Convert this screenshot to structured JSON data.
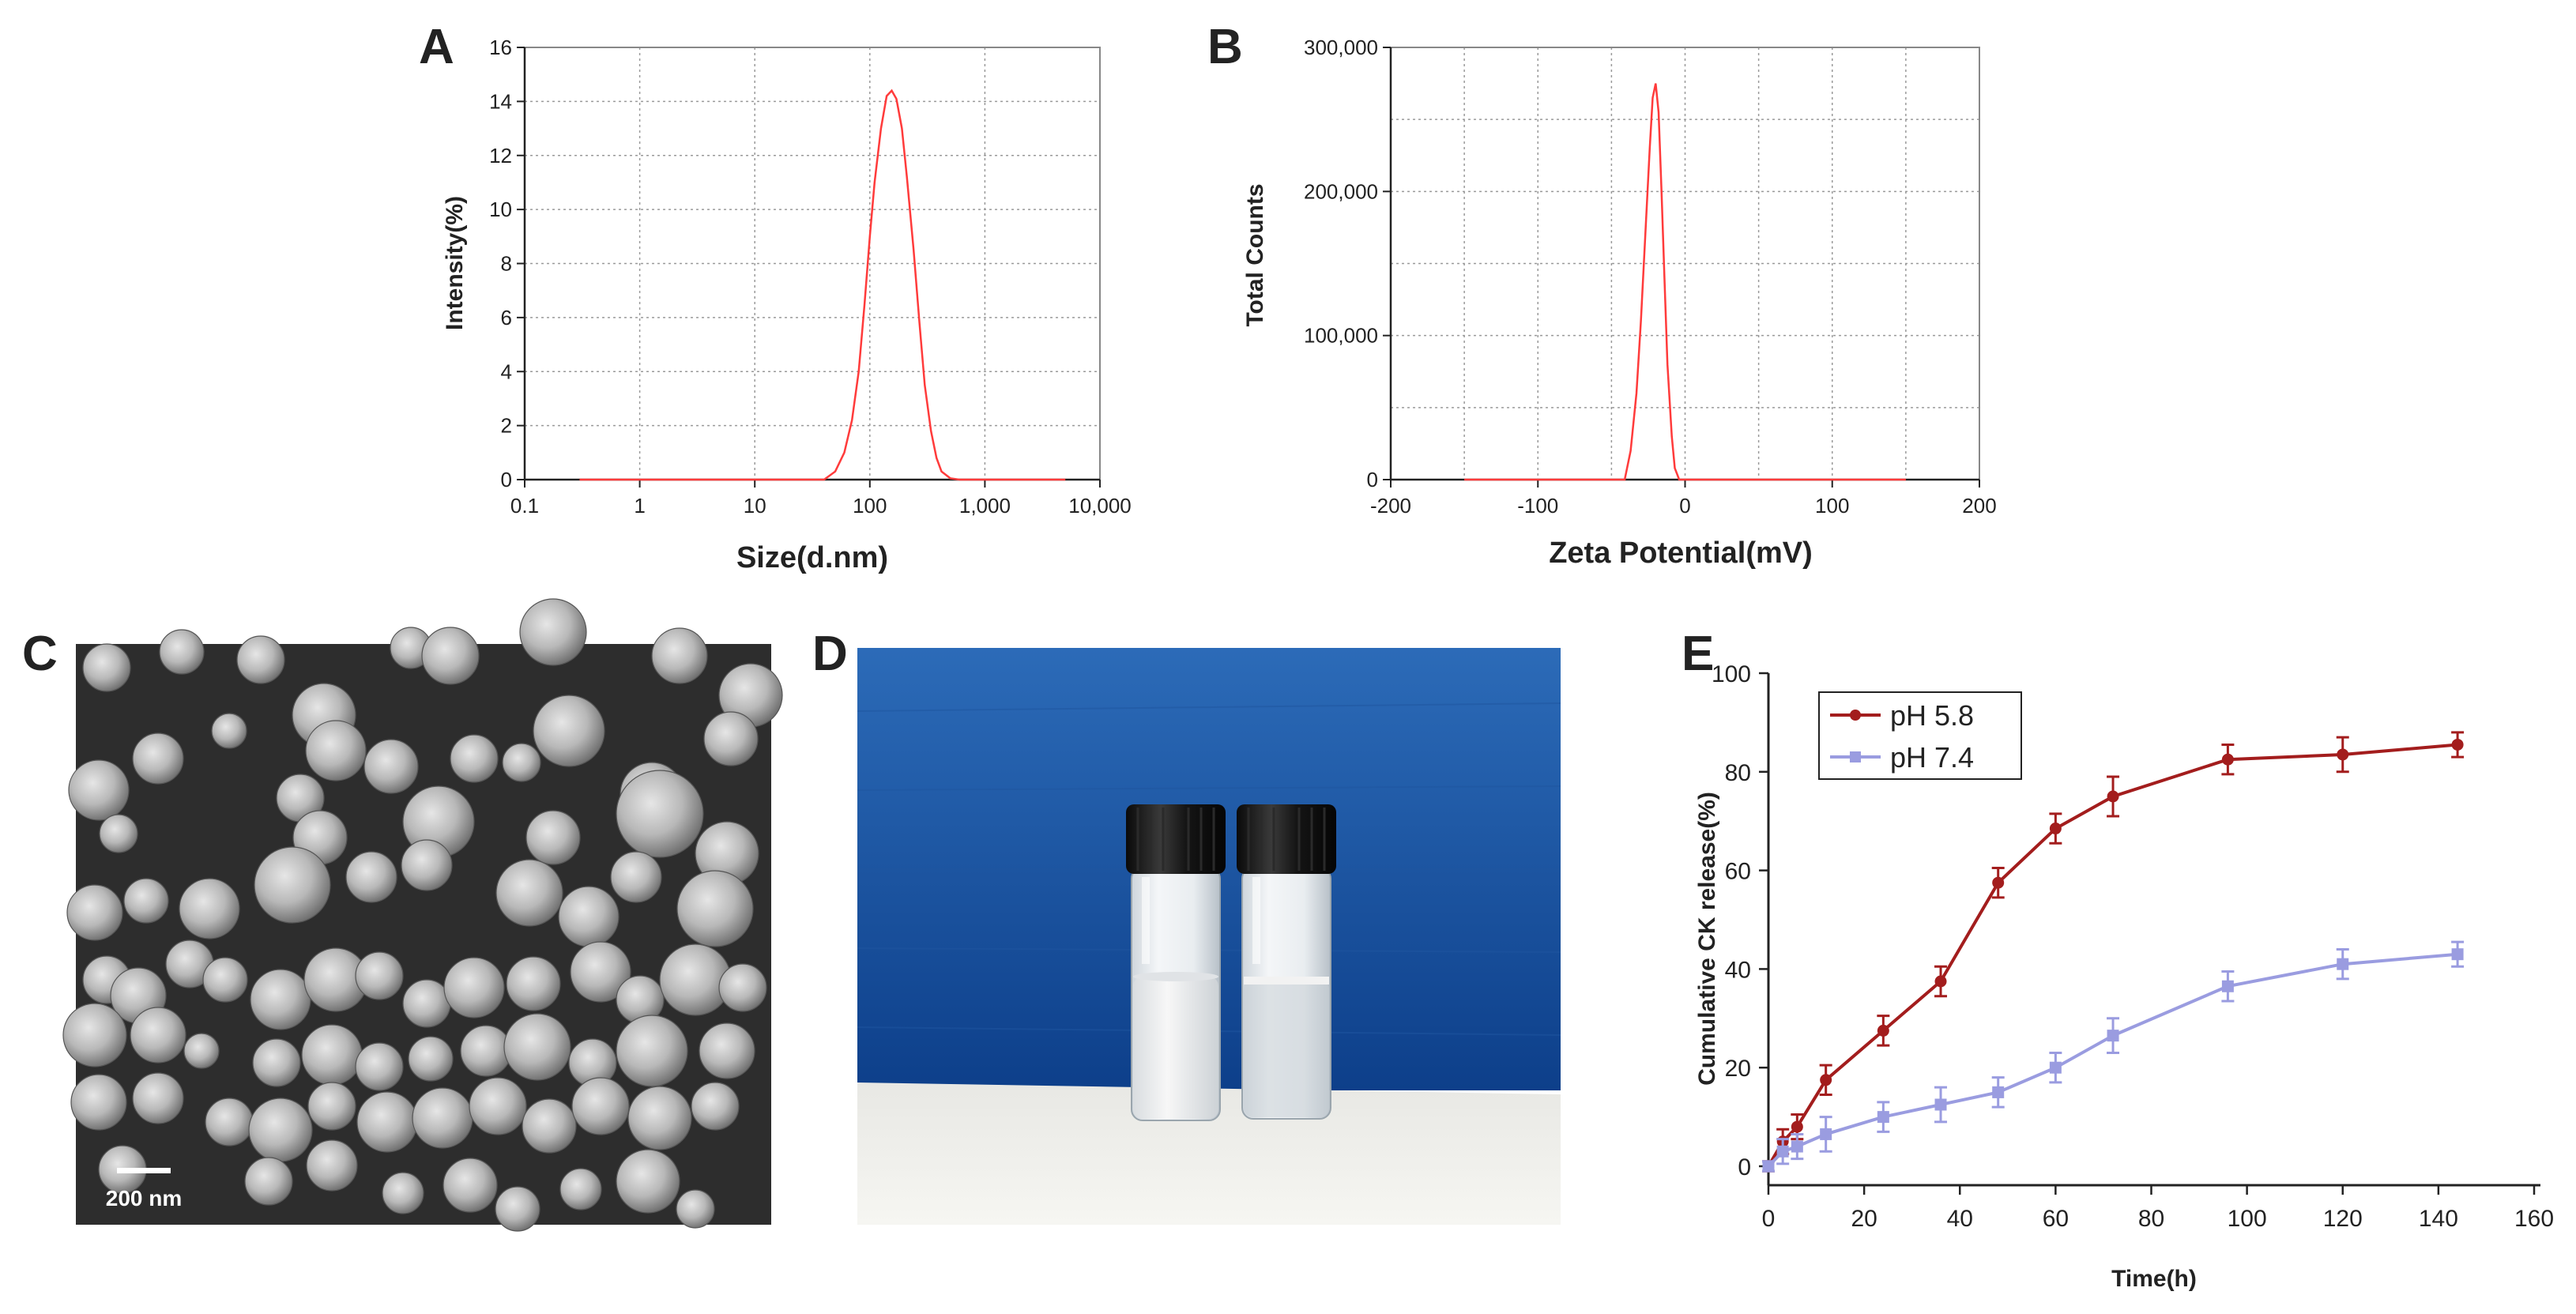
{
  "panels": {
    "A": {
      "letter": "A"
    },
    "B": {
      "letter": "B"
    },
    "C": {
      "letter": "C",
      "scale_bar": "200 nm"
    },
    "D": {
      "letter": "D"
    },
    "E": {
      "letter": "E"
    }
  },
  "colors": {
    "red_curve": "#ff3b3b",
    "ph58": "#a31d1d",
    "ph74": "#9a9ce0"
  },
  "chart_data": [
    {
      "id": "A",
      "type": "line",
      "xscale": "log",
      "xlabel": "Size(d.nm)",
      "ylabel": "Intensity(%)",
      "xlim": [
        0.1,
        10000
      ],
      "ylim": [
        0,
        16
      ],
      "xticks": [
        0.1,
        1,
        10,
        100,
        1000,
        10000
      ],
      "xtick_labels": [
        "0.1",
        "1",
        "10",
        "100",
        "1,000",
        "10,000"
      ],
      "yticks": [
        0,
        2,
        4,
        6,
        8,
        10,
        12,
        14,
        16
      ],
      "ytick_labels": [
        "0",
        "2",
        "4",
        "6",
        "8",
        "10",
        "12",
        "14",
        "16"
      ],
      "grid": true,
      "series": [
        {
          "x": [
            0.3,
            40,
            50,
            60,
            70,
            80,
            90,
            100,
            110,
            125,
            140,
            155,
            170,
            190,
            210,
            240,
            270,
            300,
            340,
            380,
            420,
            500,
            600,
            5000
          ],
          "y": [
            0,
            0,
            0.3,
            1.0,
            2.2,
            4.0,
            6.5,
            9.0,
            11.0,
            13.0,
            14.2,
            14.4,
            14.1,
            13.0,
            11.2,
            8.5,
            5.8,
            3.5,
            1.8,
            0.8,
            0.3,
            0.05,
            0,
            0
          ]
        }
      ]
    },
    {
      "id": "B",
      "type": "line",
      "xlabel": "Zeta Potential(mV)",
      "ylabel": "Total Counts",
      "xlim": [
        -200,
        200
      ],
      "ylim": [
        0,
        300000
      ],
      "xticks": [
        -200,
        -100,
        0,
        100,
        200
      ],
      "xtick_labels": [
        "-200",
        "-100",
        "0",
        "100",
        "200"
      ],
      "yticks": [
        0,
        100000,
        200000,
        300000
      ],
      "ytick_labels": [
        "0",
        "100,000",
        "200,000",
        "300,000"
      ],
      "grid": true,
      "series": [
        {
          "x": [
            -150,
            -41,
            -37,
            -33,
            -30,
            -27,
            -24,
            -22,
            -20,
            -18,
            -16,
            -14,
            -12,
            -9,
            -7,
            -4,
            150
          ],
          "y": [
            0,
            0,
            20000,
            60000,
            110000,
            170000,
            230000,
            265000,
            275000,
            255000,
            200000,
            140000,
            80000,
            30000,
            8000,
            0,
            0
          ]
        }
      ]
    },
    {
      "id": "E",
      "type": "line",
      "xlabel": "Time(h)",
      "ylabel": "Cumulative CK release(%)",
      "xlim": [
        0,
        160
      ],
      "ylim": [
        0,
        100
      ],
      "xticks": [
        0,
        20,
        40,
        60,
        80,
        100,
        120,
        140,
        160
      ],
      "yticks": [
        0,
        20,
        40,
        60,
        80,
        100
      ],
      "grid": false,
      "legend": "top-left",
      "x": [
        0,
        3,
        6,
        12,
        24,
        36,
        48,
        60,
        72,
        96,
        120,
        144
      ],
      "series": [
        {
          "name": "pH 5.8",
          "marker": "circle",
          "values": [
            0,
            5,
            8,
            17.5,
            27.5,
            37.5,
            57.5,
            68.5,
            75,
            82.5,
            83.5,
            85.5
          ],
          "errors": [
            1,
            2.5,
            2.5,
            3,
            3,
            3,
            3,
            3,
            4,
            3,
            3.5,
            2.5
          ]
        },
        {
          "name": "pH 7.4",
          "marker": "square",
          "values": [
            0,
            3,
            4,
            6.5,
            10,
            12.5,
            15,
            20,
            26.5,
            36.5,
            41,
            43
          ],
          "errors": [
            1,
            2.5,
            2.5,
            3.5,
            3,
            3.5,
            3,
            3,
            3.5,
            3,
            3,
            2.5
          ]
        }
      ]
    }
  ]
}
